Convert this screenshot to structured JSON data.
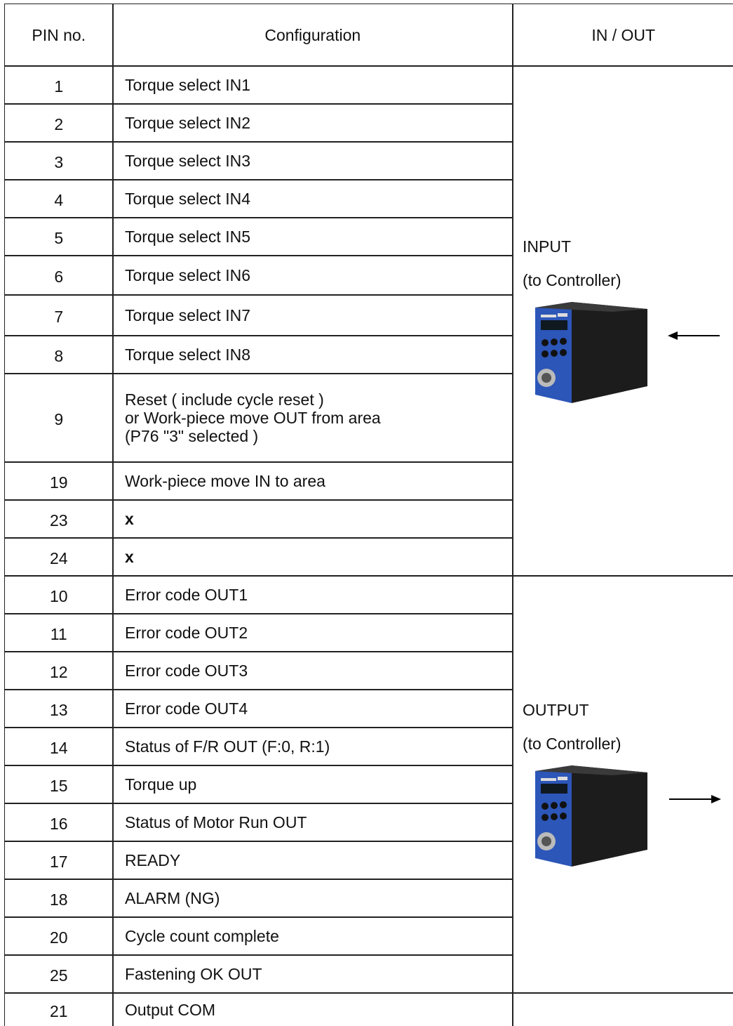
{
  "header": [
    "PIN no.",
    "Configuration",
    "IN / OUT"
  ],
  "rows": [
    {
      "pin": "1",
      "config": [
        "Torque select IN1"
      ]
    },
    {
      "pin": "2",
      "config": [
        "Torque select IN2"
      ]
    },
    {
      "pin": "3",
      "config": [
        "Torque select IN3"
      ]
    },
    {
      "pin": "4",
      "config": [
        "Torque select IN4"
      ]
    },
    {
      "pin": "5",
      "config": [
        "Torque select IN5"
      ]
    },
    {
      "pin": "6",
      "config": [
        "Torque select IN6"
      ]
    },
    {
      "pin": "7",
      "config": [
        "Torque select IN7"
      ]
    },
    {
      "pin": "8",
      "config": [
        "Torque select IN8"
      ]
    },
    {
      "pin": "9",
      "config": [
        "Reset ( include cycle reset )",
        "or Work-piece move OUT from area",
        "(P76 \"3\" selected )"
      ]
    },
    {
      "pin": "19",
      "config": [
        "Work-piece move IN to area"
      ]
    },
    {
      "pin": "23",
      "config": [
        "x"
      ]
    },
    {
      "pin": "24",
      "config": [
        "x"
      ]
    },
    {
      "pin": "10",
      "config": [
        "Error code OUT1"
      ]
    },
    {
      "pin": "11",
      "config": [
        "Error code OUT2"
      ]
    },
    {
      "pin": "12",
      "config": [
        "Error code OUT3"
      ]
    },
    {
      "pin": "13",
      "config": [
        "Error code OUT4"
      ]
    },
    {
      "pin": "14",
      "config": [
        "Status of F/R OUT (F:0, R:1)"
      ]
    },
    {
      "pin": "15",
      "config": [
        "Torque up"
      ]
    },
    {
      "pin": "16",
      "config": [
        "Status of Motor Run OUT"
      ]
    },
    {
      "pin": "17",
      "config": [
        "READY"
      ]
    },
    {
      "pin": "18",
      "config": [
        "ALARM (NG)"
      ]
    },
    {
      "pin": "20",
      "config": [
        "Cycle count complete"
      ]
    },
    {
      "pin": "25",
      "config": [
        "Fastening OK OUT"
      ]
    },
    {
      "pin": "21",
      "config": [
        "Output COM"
      ]
    }
  ],
  "groups": [
    {
      "label": "INPUT",
      "sub": "(to Controller)"
    },
    {
      "label": "OUTPUT",
      "sub": "(to Controller)"
    }
  ]
}
